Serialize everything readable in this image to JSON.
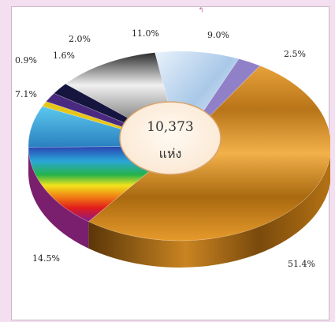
{
  "top_mark": "ๆ",
  "chart_data": {
    "type": "pie",
    "style": "3d-doughnut",
    "center_value": "10,373",
    "center_unit": "แห่ง",
    "slices": [
      {
        "label": "51.4%",
        "value": 51.4,
        "color": "#c8811c"
      },
      {
        "label": "14.5%",
        "value": 14.5,
        "color": "rainbow"
      },
      {
        "label": "7.1%",
        "value": 7.1,
        "color": "#3a9ed6"
      },
      {
        "label": "0.9%",
        "value": 0.9,
        "color": "#e6c619"
      },
      {
        "label": "1.6%",
        "value": 1.6,
        "color": "#4a2a80"
      },
      {
        "label": "2.0%",
        "value": 2.0,
        "color": "#151540"
      },
      {
        "label": "11.0%",
        "value": 11.0,
        "color": "#a8a8a8"
      },
      {
        "label": "9.0%",
        "value": 9.0,
        "color": "#c9dff2"
      },
      {
        "label": "2.5%",
        "value": 2.5,
        "color": "#8f80c8"
      }
    ]
  }
}
